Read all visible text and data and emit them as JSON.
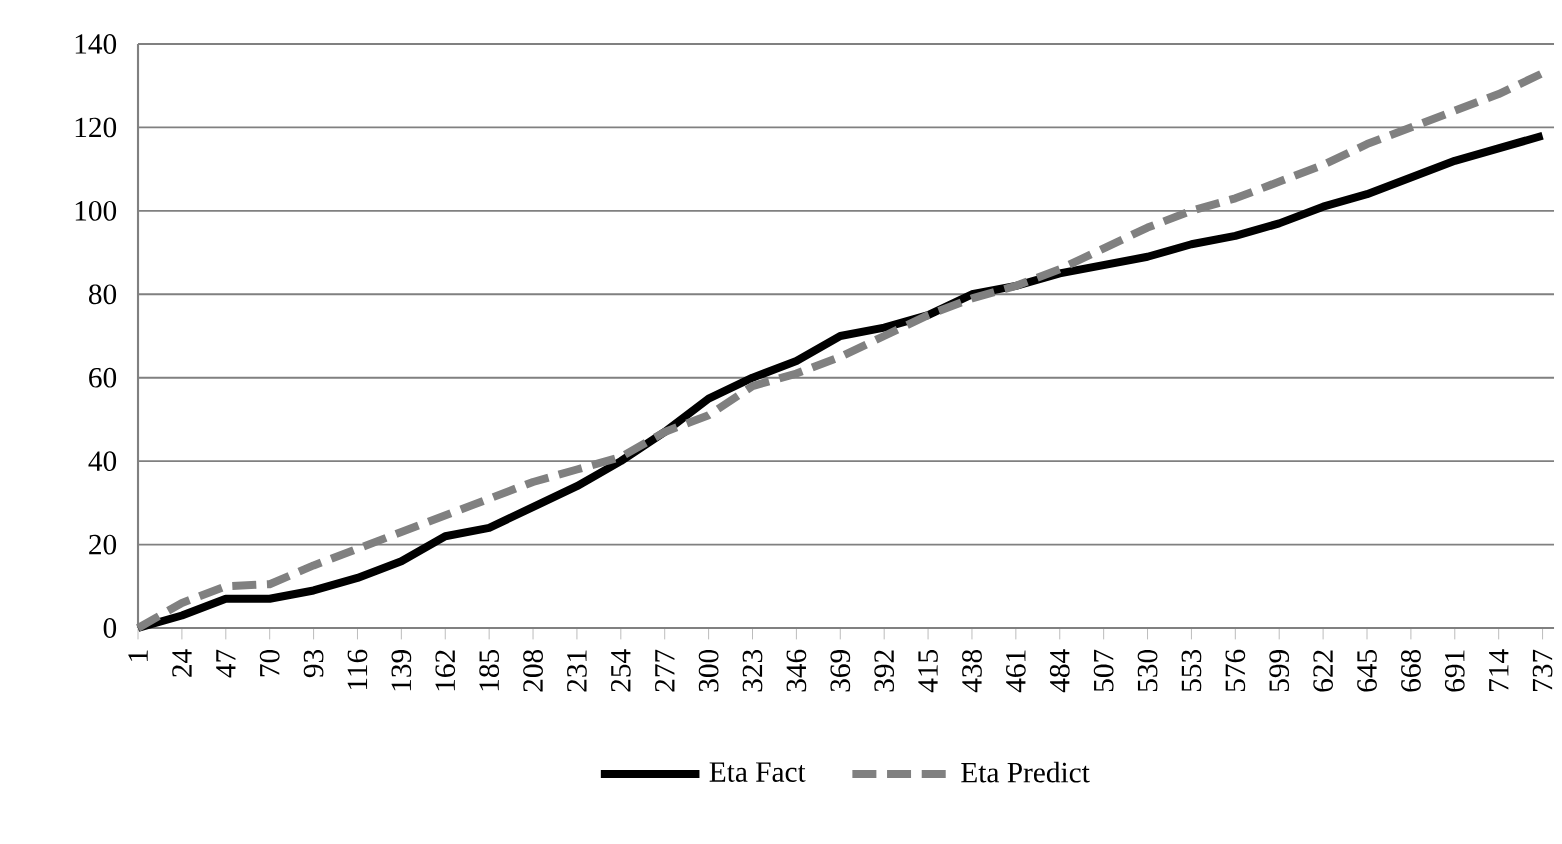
{
  "chart_data": {
    "type": "line",
    "x": [
      1,
      24,
      47,
      70,
      93,
      116,
      139,
      162,
      185,
      208,
      231,
      254,
      277,
      300,
      323,
      346,
      369,
      392,
      415,
      438,
      461,
      484,
      507,
      530,
      553,
      576,
      599,
      622,
      645,
      668,
      691,
      714,
      737
    ],
    "series": [
      {
        "name": "Eta Fact",
        "color": "#000000",
        "line_style": "solid",
        "values": [
          0,
          3,
          7,
          7,
          9,
          12,
          16,
          22,
          24,
          29,
          34,
          40,
          47,
          55,
          60,
          64,
          70,
          72,
          75,
          80,
          82,
          85,
          87,
          89,
          92,
          94,
          97,
          101,
          104,
          108,
          112,
          115,
          118
        ]
      },
      {
        "name": "Eta Predict",
        "color": "#808080",
        "line_style": "dashed",
        "values": [
          0,
          6,
          10,
          10.5,
          15,
          19,
          23,
          27,
          31,
          35,
          38,
          41,
          47,
          51,
          58,
          61,
          65,
          70,
          75,
          79,
          82,
          86,
          91,
          96,
          100,
          103,
          107,
          111,
          116,
          120,
          124,
          128,
          133
        ]
      }
    ],
    "xlim": [
      1,
      743
    ],
    "xticks": [
      1,
      24,
      47,
      70,
      93,
      116,
      139,
      162,
      185,
      208,
      231,
      254,
      277,
      300,
      323,
      346,
      369,
      392,
      415,
      438,
      461,
      484,
      507,
      530,
      553,
      576,
      599,
      622,
      645,
      668,
      691,
      714,
      737
    ],
    "ylim": [
      0,
      140
    ],
    "yticks": [
      0,
      20,
      40,
      60,
      80,
      100,
      120,
      140
    ],
    "grid": "y",
    "legend": "bottom"
  }
}
